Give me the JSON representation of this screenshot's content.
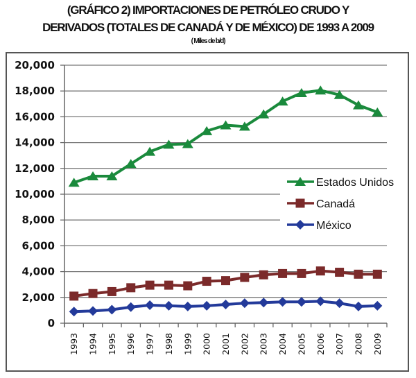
{
  "chart_data": {
    "type": "line",
    "title": "(GRÁFICO 2)   IMPORTACIONES DE PETRÓLEO CRUDO Y",
    "title_line2": "DERIVADOS (TOTALES DE CANADÁ Y DE MÉXICO)  DE 1993 A 2009",
    "subtitle": "( Miles de b/d)",
    "xlabel": "",
    "ylabel": "",
    "ylim": [
      0,
      20000
    ],
    "yticks": [
      0,
      2000,
      4000,
      6000,
      8000,
      10000,
      12000,
      14000,
      16000,
      18000,
      20000
    ],
    "ytick_labels": [
      "0",
      "2,000",
      "4,000",
      "6,000",
      "8,000",
      "10,000",
      "12,000",
      "14,000",
      "16,000",
      "18,000",
      "20,000"
    ],
    "grid": true,
    "legend_position": "right-middle",
    "categories": [
      "1993",
      "1994",
      "1995",
      "1996",
      "1997",
      "1998",
      "1999",
      "2000",
      "2001",
      "2002",
      "2003",
      "2004",
      "2005",
      "2006",
      "2007",
      "2008",
      "2009"
    ],
    "series": [
      {
        "name": "Estados Unidos",
        "color": "#1a8a3c",
        "marker": "triangle",
        "values": [
          10900,
          11400,
          11400,
          12350,
          13300,
          13850,
          13900,
          14900,
          15350,
          15250,
          16200,
          17200,
          17850,
          18050,
          17700,
          16900,
          16350
        ]
      },
      {
        "name": "Canadá",
        "color": "#7b2a2a",
        "marker": "square",
        "values": [
          2100,
          2300,
          2450,
          2750,
          2950,
          2950,
          2900,
          3250,
          3300,
          3550,
          3750,
          3850,
          3850,
          4050,
          3950,
          3800,
          3800
        ]
      },
      {
        "name": "México",
        "color": "#233a9a",
        "marker": "diamond",
        "values": [
          900,
          950,
          1050,
          1250,
          1400,
          1350,
          1300,
          1350,
          1450,
          1550,
          1600,
          1650,
          1650,
          1700,
          1550,
          1300,
          1350
        ]
      }
    ]
  }
}
